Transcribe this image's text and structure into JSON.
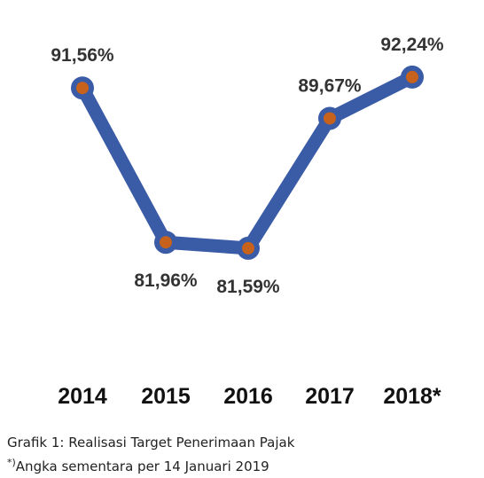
{
  "chart_data": {
    "type": "line",
    "categories": [
      "2014",
      "2015",
      "2016",
      "2017",
      "2018*"
    ],
    "series": [
      {
        "values": [
          91.56,
          81.96,
          81.59,
          89.67,
          92.24
        ]
      }
    ],
    "data_labels": [
      "91,56%",
      "81,96%",
      "81,59%",
      "89,67%",
      "92,24%"
    ],
    "ylim": [
      78,
      94
    ],
    "grid": false,
    "legend": "none",
    "colors": {
      "line": "#3a5ba6",
      "marker": "#c7621d",
      "text": "#333333"
    }
  },
  "caption": {
    "title": "Grafik 1: Realisasi Target Penerimaan Pajak",
    "note_mark": "*)",
    "note": "Angka sementara per 14 Januari 2019"
  }
}
